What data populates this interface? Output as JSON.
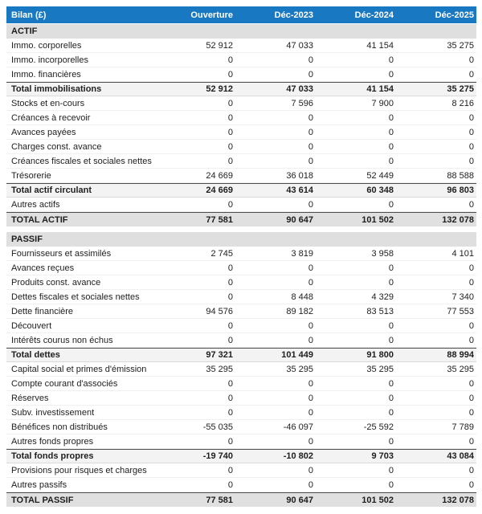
{
  "colors": {
    "header_bg": "#1878C2",
    "header_text": "#FFFFFF",
    "section_bg": "#DFDFDF",
    "subtotal_bg": "#F3F3F3",
    "grand_total_bg": "#E0E0E0",
    "total_border": "#4D4D4D",
    "row_divider": "#F0F0F0",
    "text": "#1E1E1E"
  },
  "table": {
    "currency_header": "Bilan (£)",
    "columns": [
      "Ouverture",
      "Déc-2023",
      "Déc-2024",
      "Déc-2025"
    ],
    "sections": [
      {
        "title": "ACTIF",
        "rows": [
          {
            "label": "Immo. corporelles",
            "values": [
              "52 912",
              "47 033",
              "41 154",
              "35 275"
            ],
            "style": "normal"
          },
          {
            "label": "Immo. incorporelles",
            "values": [
              "0",
              "0",
              "0",
              "0"
            ],
            "style": "normal"
          },
          {
            "label": "Immo. financières",
            "values": [
              "0",
              "0",
              "0",
              "0"
            ],
            "style": "normal"
          },
          {
            "label": "Total immobilisations",
            "values": [
              "52 912",
              "47 033",
              "41 154",
              "35 275"
            ],
            "style": "subtotal"
          },
          {
            "label": "Stocks et en-cours",
            "values": [
              "0",
              "7 596",
              "7 900",
              "8 216"
            ],
            "style": "normal"
          },
          {
            "label": "Créances à recevoir",
            "values": [
              "0",
              "0",
              "0",
              "0"
            ],
            "style": "normal"
          },
          {
            "label": "Avances payées",
            "values": [
              "0",
              "0",
              "0",
              "0"
            ],
            "style": "normal"
          },
          {
            "label": "Charges const. avance",
            "values": [
              "0",
              "0",
              "0",
              "0"
            ],
            "style": "normal"
          },
          {
            "label": "Créances fiscales et sociales nettes",
            "values": [
              "0",
              "0",
              "0",
              "0"
            ],
            "style": "normal"
          },
          {
            "label": "Trésorerie",
            "values": [
              "24 669",
              "36 018",
              "52 449",
              "88 588"
            ],
            "style": "normal"
          },
          {
            "label": "Total actif circulant",
            "values": [
              "24 669",
              "43 614",
              "60 348",
              "96 803"
            ],
            "style": "subtotal"
          },
          {
            "label": "Autres actifs",
            "values": [
              "0",
              "0",
              "0",
              "0"
            ],
            "style": "normal"
          },
          {
            "label": "TOTAL ACTIF",
            "values": [
              "77 581",
              "90 647",
              "101 502",
              "132 078"
            ],
            "style": "grand"
          }
        ]
      },
      {
        "title": "PASSIF",
        "rows": [
          {
            "label": "Fournisseurs et assimilés",
            "values": [
              "2 745",
              "3 819",
              "3 958",
              "4 101"
            ],
            "style": "normal"
          },
          {
            "label": "Avances reçues",
            "values": [
              "0",
              "0",
              "0",
              "0"
            ],
            "style": "normal"
          },
          {
            "label": "Produits const. avance",
            "values": [
              "0",
              "0",
              "0",
              "0"
            ],
            "style": "normal"
          },
          {
            "label": "Dettes fiscales et sociales nettes",
            "values": [
              "0",
              "8 448",
              "4 329",
              "7 340"
            ],
            "style": "normal"
          },
          {
            "label": "Dette financière",
            "values": [
              "94 576",
              "89 182",
              "83 513",
              "77 553"
            ],
            "style": "normal"
          },
          {
            "label": "Découvert",
            "values": [
              "0",
              "0",
              "0",
              "0"
            ],
            "style": "normal"
          },
          {
            "label": "Intérêts courus non échus",
            "values": [
              "0",
              "0",
              "0",
              "0"
            ],
            "style": "normal"
          },
          {
            "label": "Total dettes",
            "values": [
              "97 321",
              "101 449",
              "91 800",
              "88 994"
            ],
            "style": "subtotal"
          },
          {
            "label": "Capital social et primes d'émission",
            "values": [
              "35 295",
              "35 295",
              "35 295",
              "35 295"
            ],
            "style": "normal"
          },
          {
            "label": "Compte courant d'associés",
            "values": [
              "0",
              "0",
              "0",
              "0"
            ],
            "style": "normal"
          },
          {
            "label": "Réserves",
            "values": [
              "0",
              "0",
              "0",
              "0"
            ],
            "style": "normal"
          },
          {
            "label": "Subv. investissement",
            "values": [
              "0",
              "0",
              "0",
              "0"
            ],
            "style": "normal"
          },
          {
            "label": "Bénéfices non distribués",
            "values": [
              "-55 035",
              "-46 097",
              "-25 592",
              "7 789"
            ],
            "style": "normal"
          },
          {
            "label": "Autres fonds propres",
            "values": [
              "0",
              "0",
              "0",
              "0"
            ],
            "style": "normal"
          },
          {
            "label": "Total fonds propres",
            "values": [
              "-19 740",
              "-10 802",
              "9 703",
              "43 084"
            ],
            "style": "subtotal"
          },
          {
            "label": "Provisions pour risques et charges",
            "values": [
              "0",
              "0",
              "0",
              "0"
            ],
            "style": "normal"
          },
          {
            "label": "Autres passifs",
            "values": [
              "0",
              "0",
              "0",
              "0"
            ],
            "style": "normal"
          },
          {
            "label": "TOTAL PASSIF",
            "values": [
              "77 581",
              "90 647",
              "101 502",
              "132 078"
            ],
            "style": "grand"
          }
        ]
      }
    ]
  }
}
